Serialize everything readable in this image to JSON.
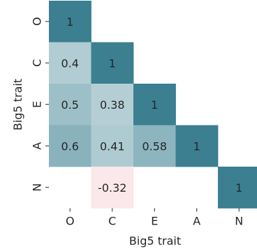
{
  "chart_data": {
    "type": "heatmap",
    "title": "",
    "xlabel": "Big5 trait",
    "ylabel": "Big5 trait",
    "x_categories": [
      "O",
      "C",
      "E",
      "A",
      "N"
    ],
    "y_categories": [
      "O",
      "C",
      "E",
      "A",
      "N"
    ],
    "mask": "upper-triangle",
    "colorbar": false,
    "colormap": {
      "negative_max": "#f4b6bf",
      "neutral": "#ffffff",
      "positive_max": "#3b7f91"
    },
    "cells": [
      {
        "row": "O",
        "col": "O",
        "value": 1,
        "label": "1"
      },
      {
        "row": "C",
        "col": "O",
        "value": 0.4,
        "label": "0.4"
      },
      {
        "row": "C",
        "col": "C",
        "value": 1,
        "label": "1"
      },
      {
        "row": "E",
        "col": "O",
        "value": 0.5,
        "label": "0.5"
      },
      {
        "row": "E",
        "col": "C",
        "value": 0.38,
        "label": "0.38"
      },
      {
        "row": "E",
        "col": "E",
        "value": 1,
        "label": "1"
      },
      {
        "row": "A",
        "col": "O",
        "value": 0.6,
        "label": "0.6"
      },
      {
        "row": "A",
        "col": "C",
        "value": 0.41,
        "label": "0.41"
      },
      {
        "row": "A",
        "col": "E",
        "value": 0.58,
        "label": "0.58"
      },
      {
        "row": "A",
        "col": "A",
        "value": 1,
        "label": "1"
      },
      {
        "row": "N",
        "col": "C",
        "value": -0.32,
        "label": "-0.32"
      },
      {
        "row": "N",
        "col": "N",
        "value": 1,
        "label": "1"
      }
    ]
  }
}
